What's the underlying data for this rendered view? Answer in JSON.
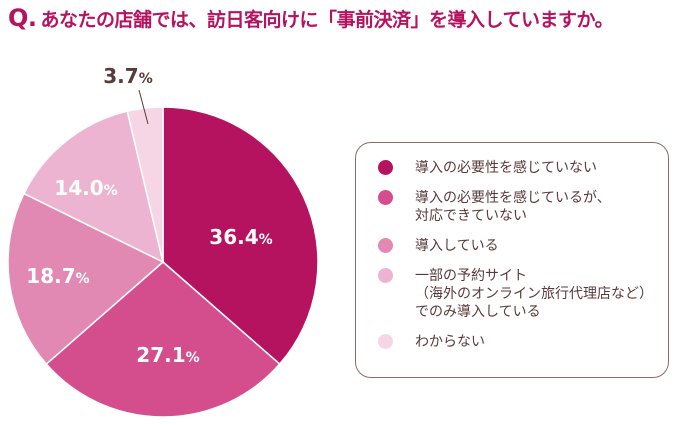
{
  "title": {
    "q": "Q.",
    "text": "あなたの店舗では、訪日客向けに「事前決済」を導入していますか。"
  },
  "chart_data": {
    "type": "pie",
    "start": "top, clockwise",
    "slices": [
      {
        "name": "導入の必要性を感じていない",
        "value": 36.4,
        "label": "36.4",
        "color": "#b5135f"
      },
      {
        "name": "導入の必要性を感じているが、\n対応できていない",
        "value": 27.1,
        "label": "27.1",
        "color": "#d44d8d"
      },
      {
        "name": "導入している",
        "value": 18.7,
        "label": "18.7",
        "color": "#e189b3"
      },
      {
        "name": "一部の予約サイト\n（海外のオンライン旅行代理店など）\nでのみ導入している",
        "value": 14.0,
        "label": "14.0",
        "color": "#ecb4d0"
      },
      {
        "name": "わからない",
        "value": 3.7,
        "label": "3.7",
        "color": "#f6d6e4"
      }
    ],
    "unit": "%",
    "legend": "right"
  }
}
